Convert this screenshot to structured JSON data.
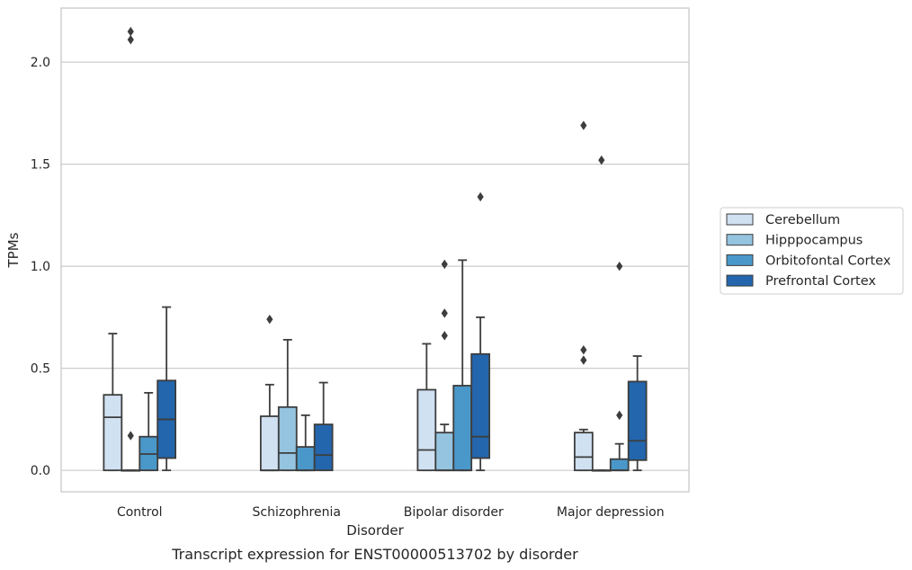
{
  "chart_data": {
    "type": "boxplot",
    "xlabel": "Disorder",
    "ylabel": "TPMs",
    "caption": "Transcript expression for ENST00000513702 by disorder",
    "ylim": [
      -0.105,
      2.265
    ],
    "yticks": [
      0.0,
      0.5,
      1.0,
      1.5,
      2.0
    ],
    "ytick_labels": [
      "0.0",
      "0.5",
      "1.0",
      "1.5",
      "2.0"
    ],
    "grid": "horizontal",
    "legend_position": "right",
    "categories": [
      "Control",
      "Schizophrenia",
      "Bipolar disorder",
      "Major depression"
    ],
    "series": [
      {
        "name": "Cerebellum",
        "color": "#d0e1f2",
        "boxes": [
          {
            "whislo": 0.0,
            "q1": 0.0,
            "med": 0.26,
            "q3": 0.37,
            "whishi": 0.67,
            "fliers": []
          },
          {
            "whislo": 0.0,
            "q1": 0.0,
            "med": 0.0,
            "q3": 0.265,
            "whishi": 0.42,
            "fliers": [
              0.74
            ]
          },
          {
            "whislo": 0.0,
            "q1": 0.0,
            "med": 0.1,
            "q3": 0.395,
            "whishi": 0.62,
            "fliers": []
          },
          {
            "whislo": 0.0,
            "q1": 0.0,
            "med": 0.065,
            "q3": 0.185,
            "whishi": 0.2,
            "fliers": [
              0.54,
              0.59,
              1.69
            ]
          }
        ]
      },
      {
        "name": "Hipppocampus",
        "color": "#94c4df",
        "boxes": [
          {
            "whislo": 0.0,
            "q1": 0.0,
            "med": 0.0,
            "q3": 0.0,
            "whishi": 0.0,
            "fliers": [
              0.17,
              2.11,
              2.15
            ]
          },
          {
            "whislo": 0.0,
            "q1": 0.0,
            "med": 0.085,
            "q3": 0.31,
            "whishi": 0.64,
            "fliers": []
          },
          {
            "whislo": 0.0,
            "q1": 0.0,
            "med": 0.0,
            "q3": 0.185,
            "whishi": 0.225,
            "fliers": [
              0.66,
              0.77,
              1.01
            ]
          },
          {
            "whislo": 0.0,
            "q1": 0.0,
            "med": 0.0,
            "q3": 0.0,
            "whishi": 0.0,
            "fliers": [
              1.52
            ]
          }
        ]
      },
      {
        "name": "Orbitofontal Cortex",
        "color": "#4a98c9",
        "boxes": [
          {
            "whislo": 0.0,
            "q1": 0.0,
            "med": 0.08,
            "q3": 0.165,
            "whishi": 0.38,
            "fliers": []
          },
          {
            "whislo": 0.0,
            "q1": 0.0,
            "med": 0.0,
            "q3": 0.115,
            "whishi": 0.27,
            "fliers": []
          },
          {
            "whislo": 0.0,
            "q1": 0.0,
            "med": 0.0,
            "q3": 0.415,
            "whishi": 1.03,
            "fliers": []
          },
          {
            "whislo": 0.0,
            "q1": 0.0,
            "med": 0.0,
            "q3": 0.055,
            "whishi": 0.13,
            "fliers": [
              0.27,
              1.0
            ]
          }
        ]
      },
      {
        "name": "Prefrontal Cortex",
        "color": "#2366ad",
        "boxes": [
          {
            "whislo": 0.0,
            "q1": 0.06,
            "med": 0.25,
            "q3": 0.44,
            "whishi": 0.8,
            "fliers": []
          },
          {
            "whislo": 0.0,
            "q1": 0.0,
            "med": 0.075,
            "q3": 0.225,
            "whishi": 0.43,
            "fliers": []
          },
          {
            "whislo": 0.0,
            "q1": 0.06,
            "med": 0.165,
            "q3": 0.57,
            "whishi": 0.75,
            "fliers": [
              1.34
            ]
          },
          {
            "whislo": 0.0,
            "q1": 0.05,
            "med": 0.145,
            "q3": 0.435,
            "whishi": 0.56,
            "fliers": []
          }
        ]
      }
    ]
  }
}
